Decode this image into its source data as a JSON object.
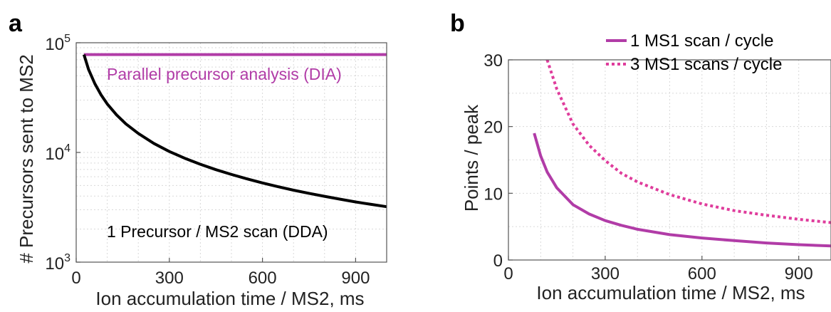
{
  "colors": {
    "magenta": "#b13ca7",
    "pink": "#df3c9c",
    "black": "#000000",
    "axis": "#555555",
    "grid": "#d9d9d9"
  },
  "chart_data": [
    {
      "panel": "a",
      "type": "line",
      "xlabel": "Ion accumulation time / MS2, ms",
      "ylabel": "# Precursors sent to MS2",
      "xlim": [
        0,
        1000
      ],
      "ylim": [
        1000,
        100000
      ],
      "yscale": "log",
      "xticks": [
        "0",
        "300",
        "600",
        "900"
      ],
      "xtick_values": [
        0,
        300,
        600,
        900
      ],
      "yticks": [
        {
          "base": "10",
          "exp": "3",
          "value": 1000
        },
        {
          "base": "10",
          "exp": "4",
          "value": 10000
        },
        {
          "base": "10",
          "exp": "5",
          "value": 100000
        }
      ],
      "grid": true,
      "series": [
        {
          "name": "Parallel precursor analysis (DIA)",
          "color": "#b13ca7",
          "style": "solid",
          "x": [
            25,
            1000
          ],
          "y": [
            78000,
            78000
          ]
        },
        {
          "name": "1 Precursor / MS2 scan (DDA)",
          "color": "#000000",
          "style": "solid",
          "x": [
            25,
            40,
            60,
            80,
            100,
            130,
            160,
            200,
            250,
            300,
            350,
            400,
            450,
            500,
            550,
            600,
            650,
            700,
            750,
            800,
            850,
            900,
            950,
            1000
          ],
          "y": [
            78000,
            57000,
            42300,
            33500,
            27700,
            22000,
            18200,
            14900,
            12100,
            10200,
            8850,
            7800,
            6960,
            6300,
            5740,
            5270,
            4870,
            4530,
            4240,
            3980,
            3750,
            3540,
            3360,
            3200
          ]
        }
      ],
      "annotations": [
        {
          "text": "Parallel precursor analysis (DIA)",
          "color": "#b13ca7"
        },
        {
          "text": "1 Precursor / MS2 scan (DDA)",
          "color": "#000000"
        }
      ]
    },
    {
      "panel": "b",
      "type": "line",
      "xlabel": "Ion accumulation time / MS2, ms",
      "ylabel": "Points / peak",
      "xlim": [
        0,
        1000
      ],
      "ylim": [
        0,
        30
      ],
      "xticks": [
        "0",
        "300",
        "600",
        "900"
      ],
      "xtick_values": [
        0,
        300,
        600,
        900
      ],
      "yticks": [
        "0",
        "10",
        "20",
        "30"
      ],
      "ytick_values": [
        0,
        10,
        20,
        30
      ],
      "grid": true,
      "legend": "top-right",
      "series": [
        {
          "name": "1 MS1 scan / cycle",
          "color": "#b13ca7",
          "style": "solid",
          "x": [
            80,
            100,
            120,
            150,
            200,
            250,
            300,
            350,
            400,
            500,
            600,
            700,
            800,
            900,
            1000
          ],
          "y": [
            19.0,
            15.6,
            13.2,
            10.8,
            8.3,
            6.9,
            5.9,
            5.2,
            4.6,
            3.8,
            3.3,
            2.9,
            2.55,
            2.3,
            2.1
          ]
        },
        {
          "name": "3 MS1 scans / cycle",
          "color": "#df3c9c",
          "style": "dotted",
          "x": [
            120,
            150,
            200,
            250,
            300,
            350,
            400,
            500,
            600,
            700,
            800,
            900,
            1000
          ],
          "y": [
            30.0,
            25.6,
            20.4,
            17.2,
            14.9,
            13.0,
            11.7,
            9.8,
            8.4,
            7.4,
            6.7,
            6.1,
            5.6
          ]
        }
      ]
    }
  ]
}
